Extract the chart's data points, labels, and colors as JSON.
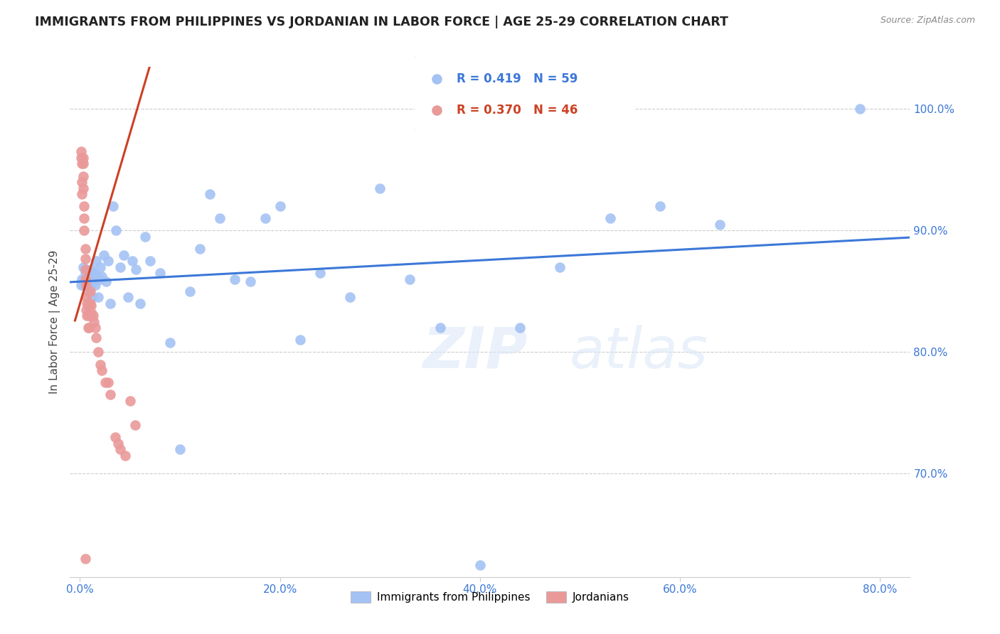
{
  "title": "IMMIGRANTS FROM PHILIPPINES VS JORDANIAN IN LABOR FORCE | AGE 25-29 CORRELATION CHART",
  "source": "Source: ZipAtlas.com",
  "ylabel": "In Labor Force | Age 25-29",
  "xlabel_ticks": [
    "0.0%",
    "20.0%",
    "40.0%",
    "60.0%",
    "80.0%"
  ],
  "xlabel_vals": [
    0.0,
    0.2,
    0.4,
    0.6,
    0.8
  ],
  "ylabel_ticks_right": [
    "100.0%",
    "90.0%",
    "80.0%",
    "70.0%"
  ],
  "ylabel_vals_right": [
    1.0,
    0.9,
    0.8,
    0.7
  ],
  "xlim": [
    -0.01,
    0.83
  ],
  "ylim": [
    0.615,
    1.035
  ],
  "blue_r": 0.419,
  "blue_n": 59,
  "pink_r": 0.37,
  "pink_n": 46,
  "blue_color": "#a4c2f4",
  "blue_line_color": "#3c78d8",
  "pink_color": "#ea9999",
  "pink_line_color": "#cc4125",
  "legend_label_blue": "Immigrants from Philippines",
  "legend_label_pink": "Jordanians",
  "watermark": "ZIPatlas",
  "blue_x": [
    0.001,
    0.002,
    0.003,
    0.004,
    0.005,
    0.006,
    0.007,
    0.008,
    0.009,
    0.01,
    0.011,
    0.012,
    0.013,
    0.014,
    0.015,
    0.016,
    0.017,
    0.018,
    0.019,
    0.02,
    0.022,
    0.024,
    0.026,
    0.028,
    0.03,
    0.033,
    0.036,
    0.04,
    0.044,
    0.048,
    0.052,
    0.056,
    0.06,
    0.065,
    0.07,
    0.08,
    0.09,
    0.1,
    0.11,
    0.12,
    0.13,
    0.14,
    0.155,
    0.17,
    0.185,
    0.2,
    0.22,
    0.24,
    0.27,
    0.3,
    0.33,
    0.36,
    0.4,
    0.44,
    0.48,
    0.53,
    0.58,
    0.64,
    0.78
  ],
  "blue_y": [
    0.855,
    0.86,
    0.87,
    0.855,
    0.865,
    0.855,
    0.858,
    0.862,
    0.85,
    0.855,
    0.868,
    0.845,
    0.858,
    0.865,
    0.855,
    0.875,
    0.862,
    0.845,
    0.86,
    0.87,
    0.862,
    0.88,
    0.858,
    0.875,
    0.84,
    0.92,
    0.9,
    0.87,
    0.88,
    0.845,
    0.875,
    0.868,
    0.84,
    0.895,
    0.875,
    0.865,
    0.808,
    0.72,
    0.85,
    0.885,
    0.93,
    0.91,
    0.86,
    0.858,
    0.91,
    0.92,
    0.81,
    0.865,
    0.845,
    0.935,
    0.86,
    0.82,
    0.625,
    0.82,
    0.87,
    0.91,
    0.92,
    0.905,
    1.0
  ],
  "pink_x": [
    0.001,
    0.001,
    0.002,
    0.002,
    0.002,
    0.003,
    0.003,
    0.003,
    0.003,
    0.004,
    0.004,
    0.004,
    0.005,
    0.005,
    0.005,
    0.005,
    0.006,
    0.006,
    0.006,
    0.007,
    0.007,
    0.008,
    0.008,
    0.009,
    0.009,
    0.01,
    0.01,
    0.011,
    0.012,
    0.013,
    0.014,
    0.015,
    0.016,
    0.018,
    0.02,
    0.022,
    0.025,
    0.028,
    0.03,
    0.035,
    0.038,
    0.04,
    0.045,
    0.05,
    0.055,
    0.005
  ],
  "pink_y": [
    0.96,
    0.965,
    0.955,
    0.94,
    0.93,
    0.96,
    0.955,
    0.945,
    0.935,
    0.92,
    0.91,
    0.9,
    0.885,
    0.877,
    0.868,
    0.86,
    0.855,
    0.845,
    0.835,
    0.84,
    0.83,
    0.838,
    0.82,
    0.83,
    0.82,
    0.85,
    0.84,
    0.838,
    0.832,
    0.83,
    0.825,
    0.82,
    0.812,
    0.8,
    0.79,
    0.785,
    0.775,
    0.775,
    0.765,
    0.73,
    0.725,
    0.72,
    0.715,
    0.76,
    0.74,
    0.63
  ],
  "blue_trend_x": [
    -0.01,
    0.83
  ],
  "blue_trend_y_intercept": 0.845,
  "blue_trend_slope": 0.195,
  "pink_trend_x_start": -0.005,
  "pink_trend_x_end": 0.075,
  "pink_trend_y_intercept": 0.84,
  "pink_trend_slope": 2.8
}
